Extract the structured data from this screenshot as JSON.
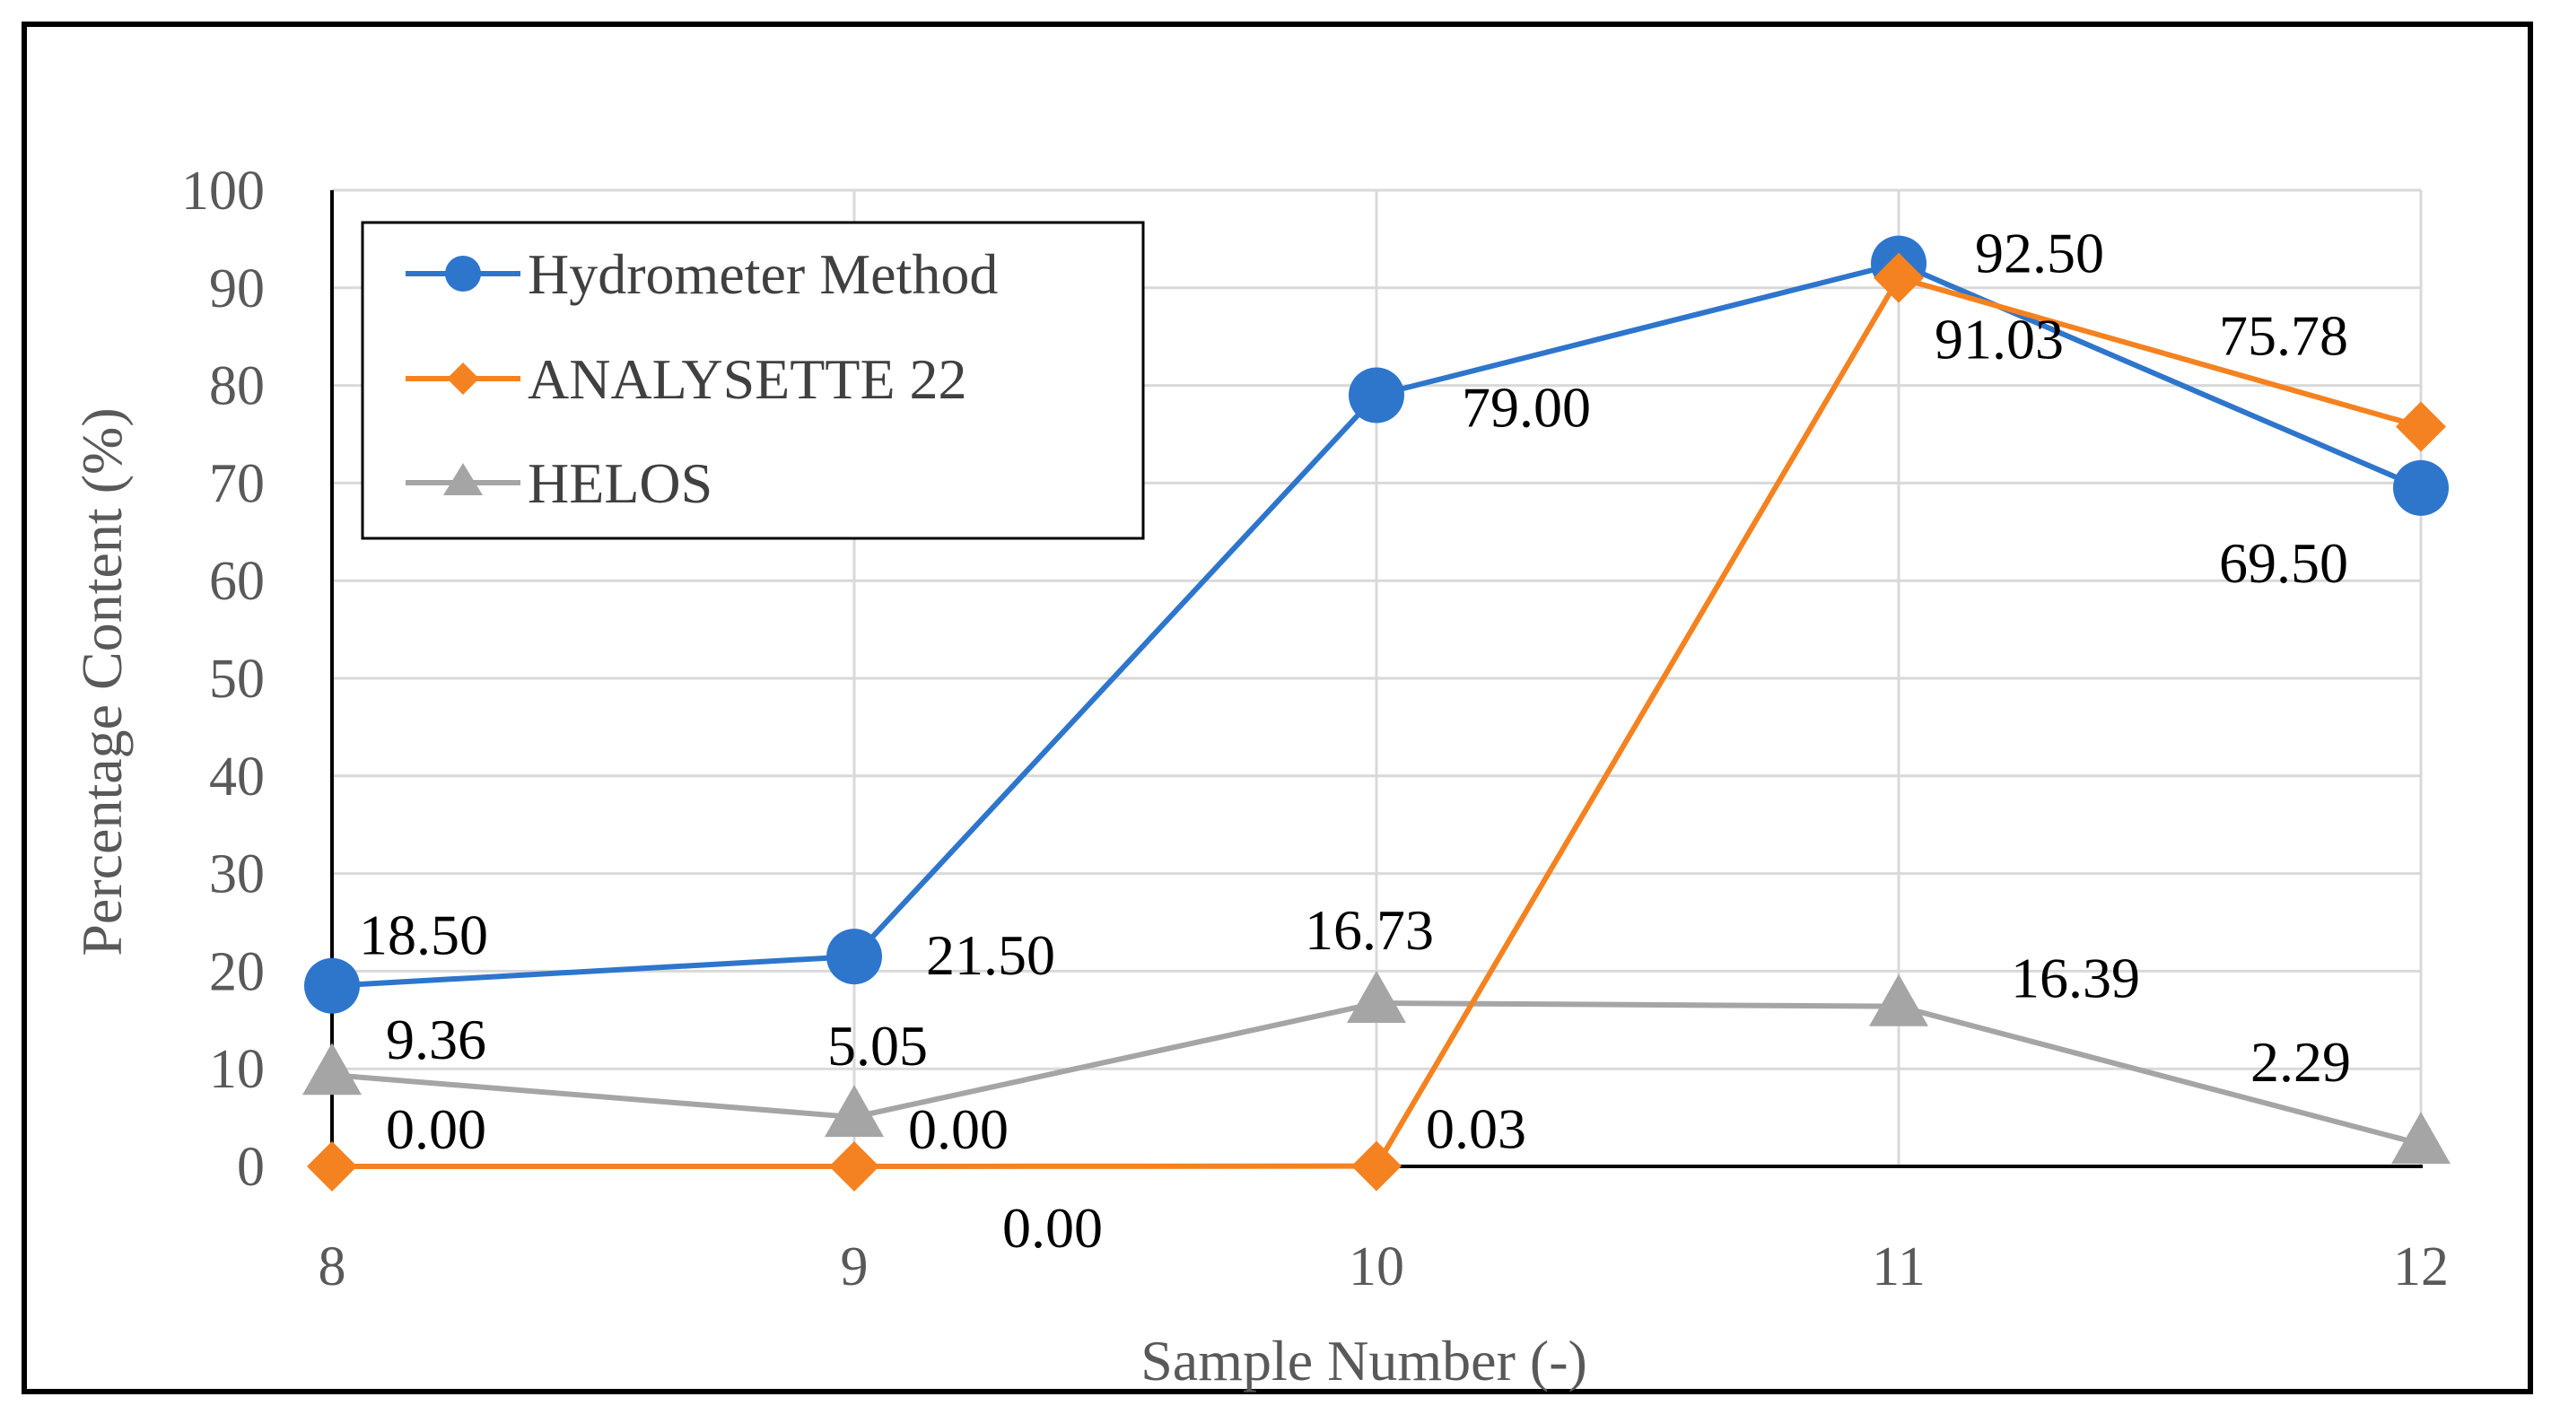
{
  "chart_data": {
    "type": "line",
    "title": "",
    "xlabel": "Sample Number (-)",
    "ylabel": "Percentage Content (%)",
    "categories": [
      "8",
      "9",
      "10",
      "11",
      "12"
    ],
    "yticks": [
      "0",
      "10",
      "20",
      "30",
      "40",
      "50",
      "60",
      "70",
      "80",
      "90",
      "100"
    ],
    "ylim": [
      0,
      100
    ],
    "grid": true,
    "legend_position": "top-left",
    "series": [
      {
        "name": "Hydrometer Method",
        "color": "#2E75CC",
        "marker": "circle",
        "values": [
          18.5,
          21.5,
          79.0,
          92.5,
          69.5
        ],
        "labels": [
          "18.50",
          "21.50",
          "79.00",
          "92.50",
          "69.50"
        ]
      },
      {
        "name": "ANALYSETTE 22",
        "color": "#F58220",
        "marker": "diamond",
        "values": [
          0.0,
          0.0,
          0.03,
          91.03,
          75.78
        ],
        "labels": [
          "0.00",
          "0.00",
          "0.03",
          "91.03",
          "75.78"
        ]
      },
      {
        "name": "HELOS",
        "color": "#A5A5A5",
        "marker": "triangle",
        "values": [
          9.36,
          5.05,
          16.73,
          16.39,
          2.29
        ],
        "labels": [
          "9.36",
          "5.05",
          "16.73",
          "16.39",
          "2.29"
        ]
      }
    ],
    "extra_labels": [
      "0.00"
    ]
  }
}
